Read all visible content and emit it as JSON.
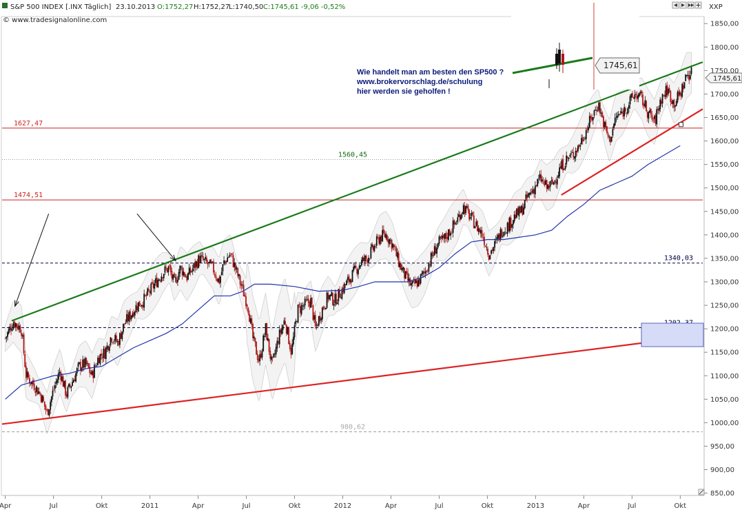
{
  "header": {
    "instrument": "S&P 500 INDEX [.INX Täglich]",
    "date": "23.10.2013",
    "open": "O:1752,27",
    "high": "H:1752,27",
    "low": "L:1740,50",
    "close_change": "C:1745,61 -9,06 -0,52%",
    "watermark": "© www.tradesignalonline.com",
    "axis_tag": "XXP",
    "nav_icons": [
      "chevron-left-icon",
      "chevron-right-icon",
      "chevron-double-right-icon",
      "pan-icon"
    ]
  },
  "colors": {
    "candle_up": "#111111",
    "candle_down": "#b01818",
    "ma": "#2233aa",
    "band": "#dddddd",
    "green_line": "#1a7a1a",
    "red_line": "#dd2222",
    "level_red": "#cc2222",
    "level_black": "#000044",
    "level_gray": "#999999",
    "level_green": "#0f6b0f",
    "annotation": "#0a1c7a"
  },
  "annotation": {
    "line1": "Wie handelt man am besten den SP500 ?",
    "line2": "www.brokervorschlag.de/schulung",
    "line3": "hier werden sie geholfen !"
  },
  "inset": {
    "price_label": "1745,61"
  },
  "last_price_label": "1745,61",
  "chart_data": {
    "type": "candlestick",
    "title": "S&P 500 INDEX [.INX Täglich]",
    "xlabel": "",
    "ylabel": "",
    "y_ticks": [
      "1850,00",
      "1800,00",
      "1750,00",
      "1700,00",
      "1650,00",
      "1600,00",
      "1550,00",
      "1500,00",
      "1450,00",
      "1400,00",
      "1350,00",
      "1300,00",
      "1250,00",
      "1200,00",
      "1150,00",
      "1100,00",
      "1050,00",
      "1000,00",
      "950,00",
      "900,00",
      "850,00"
    ],
    "y_tick_values": [
      1850,
      1800,
      1750,
      1700,
      1650,
      1600,
      1550,
      1500,
      1450,
      1400,
      1350,
      1300,
      1250,
      1200,
      1150,
      1100,
      1050,
      1000,
      950,
      900,
      850
    ],
    "x_ticks": [
      "Apr",
      "Jul",
      "Okt",
      "2011",
      "Apr",
      "Jul",
      "Okt",
      "2012",
      "Apr",
      "Jul",
      "Okt",
      "2013",
      "Apr",
      "Jul",
      "Okt"
    ],
    "x_tick_months": [
      0,
      3,
      6,
      9,
      12,
      15,
      18,
      21,
      24,
      27,
      30,
      33,
      36,
      39,
      42
    ],
    "x_month_origin": "2010-04",
    "ylim": [
      845,
      1865
    ],
    "xlim_months": [
      -0.2,
      43.4
    ],
    "closes_path": [
      [
        0,
        1180
      ],
      [
        0.5,
        1215
      ],
      [
        1,
        1200
      ],
      [
        1.3,
        1100
      ],
      [
        1.8,
        1080
      ],
      [
        2.2,
        1060
      ],
      [
        2.6,
        1020
      ],
      [
        3,
        1070
      ],
      [
        3.4,
        1110
      ],
      [
        3.8,
        1060
      ],
      [
        4.2,
        1090
      ],
      [
        4.6,
        1120
      ],
      [
        5,
        1125
      ],
      [
        5.4,
        1100
      ],
      [
        5.8,
        1140
      ],
      [
        6.2,
        1150
      ],
      [
        6.6,
        1185
      ],
      [
        7,
        1170
      ],
      [
        7.4,
        1210
      ],
      [
        7.8,
        1230
      ],
      [
        8.2,
        1250
      ],
      [
        8.6,
        1260
      ],
      [
        9,
        1280
      ],
      [
        9.4,
        1300
      ],
      [
        9.8,
        1320
      ],
      [
        10.2,
        1330
      ],
      [
        10.5,
        1295
      ],
      [
        10.9,
        1330
      ],
      [
        11.3,
        1310
      ],
      [
        11.7,
        1330
      ],
      [
        12.1,
        1350
      ],
      [
        12.5,
        1340
      ],
      [
        12.9,
        1330
      ],
      [
        13.3,
        1300
      ],
      [
        13.6,
        1340
      ],
      [
        14,
        1360
      ],
      [
        14.4,
        1320
      ],
      [
        14.8,
        1280
      ],
      [
        15.1,
        1250
      ],
      [
        15.4,
        1180
      ],
      [
        15.8,
        1130
      ],
      [
        16.2,
        1200
      ],
      [
        16.6,
        1120
      ],
      [
        17,
        1180
      ],
      [
        17.4,
        1220
      ],
      [
        17.8,
        1150
      ],
      [
        18.2,
        1240
      ],
      [
        18.6,
        1250
      ],
      [
        19,
        1260
      ],
      [
        19.3,
        1200
      ],
      [
        19.7,
        1240
      ],
      [
        20.1,
        1270
      ],
      [
        20.5,
        1260
      ],
      [
        20.9,
        1280
      ],
      [
        21.3,
        1300
      ],
      [
        21.7,
        1320
      ],
      [
        22.1,
        1340
      ],
      [
        22.5,
        1350
      ],
      [
        22.9,
        1370
      ],
      [
        23.3,
        1395
      ],
      [
        23.7,
        1400
      ],
      [
        24.1,
        1380
      ],
      [
        24.5,
        1340
      ],
      [
        24.9,
        1310
      ],
      [
        25.3,
        1290
      ],
      [
        25.7,
        1300
      ],
      [
        26.1,
        1320
      ],
      [
        26.5,
        1350
      ],
      [
        26.9,
        1380
      ],
      [
        27.3,
        1390
      ],
      [
        27.7,
        1410
      ],
      [
        28.1,
        1430
      ],
      [
        28.5,
        1460
      ],
      [
        28.9,
        1440
      ],
      [
        29.3,
        1420
      ],
      [
        29.7,
        1400
      ],
      [
        30.1,
        1360
      ],
      [
        30.5,
        1380
      ],
      [
        30.9,
        1410
      ],
      [
        31.3,
        1420
      ],
      [
        31.7,
        1440
      ],
      [
        32.1,
        1450
      ],
      [
        32.5,
        1480
      ],
      [
        32.9,
        1500
      ],
      [
        33.3,
        1520
      ],
      [
        33.7,
        1500
      ],
      [
        34.1,
        1510
      ],
      [
        34.5,
        1540
      ],
      [
        34.9,
        1560
      ],
      [
        35.3,
        1570
      ],
      [
        35.7,
        1590
      ],
      [
        36.1,
        1620
      ],
      [
        36.5,
        1650
      ],
      [
        36.9,
        1680
      ],
      [
        37.3,
        1630
      ],
      [
        37.6,
        1600
      ],
      [
        38,
        1650
      ],
      [
        38.4,
        1660
      ],
      [
        38.8,
        1680
      ],
      [
        39.2,
        1700
      ],
      [
        39.6,
        1690
      ],
      [
        40,
        1660
      ],
      [
        40.4,
        1640
      ],
      [
        40.8,
        1690
      ],
      [
        41.2,
        1710
      ],
      [
        41.6,
        1680
      ],
      [
        42,
        1700
      ],
      [
        42.4,
        1740
      ],
      [
        42.7,
        1745
      ]
    ],
    "ma_path": [
      [
        0,
        1050
      ],
      [
        1,
        1080
      ],
      [
        2,
        1090
      ],
      [
        3,
        1100
      ],
      [
        4,
        1105
      ],
      [
        5,
        1115
      ],
      [
        6,
        1120
      ],
      [
        7,
        1140
      ],
      [
        8,
        1160
      ],
      [
        9,
        1175
      ],
      [
        10,
        1190
      ],
      [
        11,
        1210
      ],
      [
        12,
        1240
      ],
      [
        13,
        1270
      ],
      [
        14,
        1270
      ],
      [
        14.8,
        1280
      ],
      [
        15.5,
        1295
      ],
      [
        16.5,
        1295
      ],
      [
        18,
        1290
      ],
      [
        19.5,
        1280
      ],
      [
        21,
        1282
      ],
      [
        22,
        1290
      ],
      [
        23,
        1300
      ],
      [
        24,
        1300
      ],
      [
        25,
        1300
      ],
      [
        26,
        1310
      ],
      [
        27,
        1330
      ],
      [
        28,
        1360
      ],
      [
        29,
        1385
      ],
      [
        30,
        1390
      ],
      [
        31,
        1390
      ],
      [
        32,
        1395
      ],
      [
        33,
        1400
      ],
      [
        34,
        1410
      ],
      [
        35,
        1440
      ],
      [
        36,
        1465
      ],
      [
        37,
        1495
      ],
      [
        38,
        1510
      ],
      [
        39,
        1525
      ],
      [
        40,
        1550
      ],
      [
        41,
        1570
      ],
      [
        42,
        1590
      ]
    ],
    "trendlines": [
      {
        "name": "green",
        "from": [
          0.4,
          1217
        ],
        "to": [
          43.4,
          1768
        ]
      },
      {
        "name": "red-long",
        "from": [
          -0.2,
          997
        ],
        "to": [
          43.4,
          1186
        ]
      },
      {
        "name": "red-short",
        "from": [
          34.6,
          1485
        ],
        "to": [
          43.4,
          1668
        ]
      }
    ],
    "levels": [
      {
        "value": 1627.47,
        "label": "1627,47",
        "style": "solid-red",
        "label_pos": "left"
      },
      {
        "value": 1560.45,
        "label": "1560,45",
        "style": "dotted-gray",
        "label_pos": "center"
      },
      {
        "value": 1474.51,
        "label": "1474,51",
        "style": "solid-red",
        "label_pos": "left"
      },
      {
        "value": 1340.03,
        "label": "1340,03",
        "style": "dashed-black",
        "label_pos": "right"
      },
      {
        "value": 1202.37,
        "label": "1202,37",
        "style": "dashed-blue",
        "label_pos": "right-box"
      },
      {
        "value": 980.62,
        "label": "980,62",
        "style": "dashed-gray",
        "label_pos": "center"
      }
    ],
    "arrows": [
      {
        "from": [
          2.7,
          1445
        ],
        "to": [
          0.6,
          1248
        ]
      },
      {
        "from": [
          8.2,
          1445
        ],
        "to": [
          10.6,
          1345
        ]
      }
    ],
    "grid": false,
    "legend": "none"
  }
}
